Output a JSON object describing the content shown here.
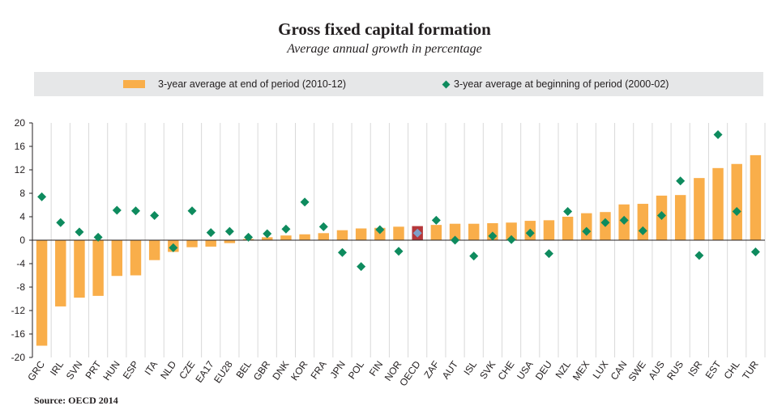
{
  "title": "Gross fixed capital formation",
  "subtitle": "Average annual growth in percentage",
  "source": "Source: OECD 2014",
  "colors": {
    "bar": "#f9ae4a",
    "bar_highlight": "#b5373a",
    "diamond": "#0e8b5e",
    "diamond_highlight": "#7f9fc8",
    "legend_bg": "#e6e7e8"
  },
  "chart_data": {
    "type": "bar",
    "title": "Gross fixed capital formation",
    "subtitle": "Average annual growth in percentage",
    "ylim": [
      -20,
      20
    ],
    "yticks": [
      20,
      16,
      12,
      8,
      4,
      0,
      -4,
      -8,
      -12,
      -16,
      -20
    ],
    "grid": "vertical",
    "legend_placement": "top",
    "highlight": "OECD",
    "categories": [
      "GRC",
      "IRL",
      "SVN",
      "PRT",
      "HUN",
      "ESP",
      "ITA",
      "NLD",
      "CZE",
      "EA17",
      "EU28",
      "BEL",
      "GBR",
      "DNK",
      "KOR",
      "FRA",
      "JPN",
      "POL",
      "FIN",
      "NOR",
      "OECD",
      "ZAF",
      "AUT",
      "ISL",
      "SVK",
      "CHE",
      "USA",
      "DEU",
      "NZL",
      "MEX",
      "LUX",
      "CAN",
      "SWE",
      "AUS",
      "RUS",
      "ISR",
      "EST",
      "CHL",
      "TUR"
    ],
    "series": [
      {
        "name": "3-year average at end of period (2010-12)",
        "kind": "bar",
        "values": [
          -18,
          -11.3,
          -9.8,
          -9.5,
          -6.1,
          -6,
          -3.4,
          -2,
          -1.2,
          -1.1,
          -0.5,
          0.2,
          0.5,
          0.8,
          1,
          1.2,
          1.7,
          2,
          2.1,
          2.3,
          2.4,
          2.6,
          2.8,
          2.8,
          2.9,
          3,
          3.3,
          3.4,
          4,
          4.6,
          4.8,
          6.1,
          6.2,
          7.6,
          7.7,
          10.6,
          12.3,
          13,
          14.5
        ]
      },
      {
        "name": "3-year average at beginning of period (2000-02)",
        "kind": "diamond",
        "values": [
          7.4,
          3,
          1.4,
          0.5,
          5.1,
          5,
          4.2,
          -1.3,
          5,
          1.3,
          1.5,
          0.5,
          1.1,
          1.9,
          6.5,
          2.3,
          -2.1,
          -4.5,
          1.8,
          -1.9,
          1.2,
          3.4,
          0,
          -2.7,
          0.7,
          0.1,
          1.2,
          -2.3,
          4.9,
          1.5,
          3,
          3.4,
          1.6,
          4.2,
          10.1,
          -2.6,
          18,
          4.9,
          -2
        ]
      }
    ]
  }
}
